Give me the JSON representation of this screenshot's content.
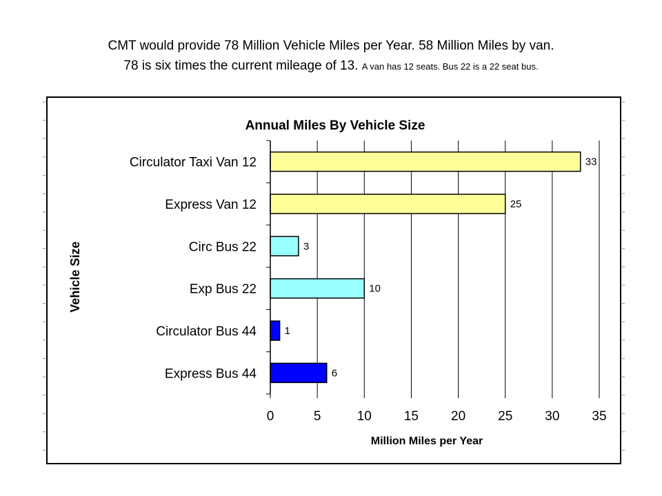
{
  "slide": {
    "title_line1": "CMT would provide 78 Million Vehicle Miles per Year.    58 Million Miles by van.",
    "title_line2": "78 is six times the current mileage of 13.",
    "title_note": "A van has 12 seats. Bus 22 is a 22 seat bus."
  },
  "chart_data": {
    "type": "bar",
    "orientation": "horizontal",
    "title": "Annual Miles By Vehicle Size",
    "xlabel": "Million Miles per Year",
    "ylabel": "Vehicle Size",
    "categories": [
      "Circulator Taxi Van 12",
      "Express Van 12",
      "Circ Bus 22",
      "Exp Bus 22",
      "Circulator Bus 44",
      "Express Bus 44"
    ],
    "values": [
      33,
      25,
      3,
      10,
      1,
      6
    ],
    "data_labels": [
      "33",
      "25",
      "3",
      "10",
      "1",
      "6"
    ],
    "xlim": [
      0,
      35
    ],
    "xticks": [
      "0",
      "5",
      "10",
      "15",
      "20",
      "25",
      "30",
      "35"
    ],
    "grid": "vertical",
    "colors": {
      "van": "#ffff99",
      "bus22": "#99ffff",
      "bus44": "#0000ff"
    },
    "bar_colors": [
      "#ffff99",
      "#ffff99",
      "#99ffff",
      "#99ffff",
      "#0000ff",
      "#0000ff"
    ]
  }
}
